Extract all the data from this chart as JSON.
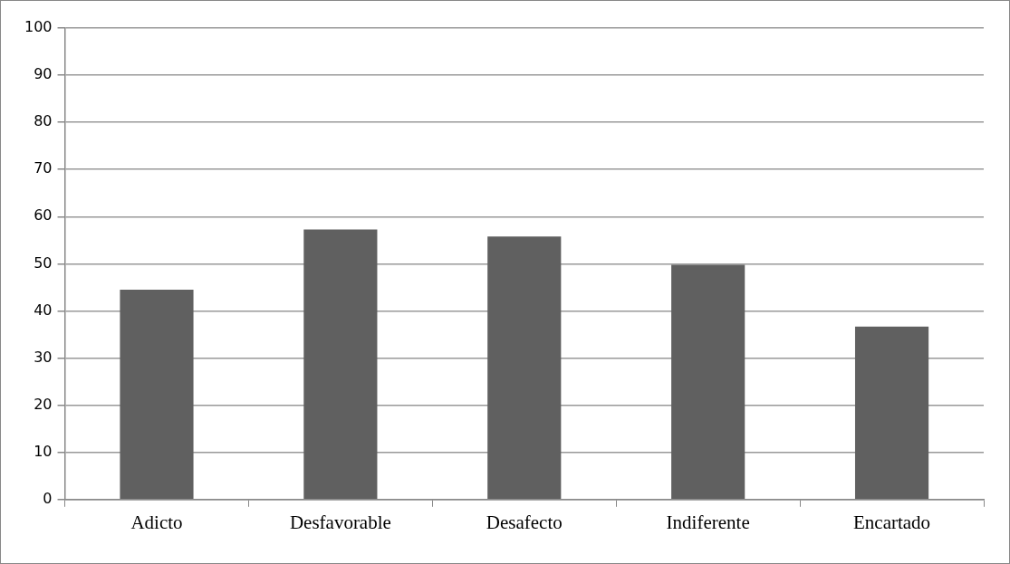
{
  "chart_data": {
    "type": "bar",
    "categories": [
      "Adicto",
      "Desfavorable",
      "Desafecto",
      "Indiferente",
      "Encartado"
    ],
    "values": [
      44.5,
      57.3,
      55.8,
      49.8,
      36.7
    ],
    "color": "#606060",
    "ylim": [
      0,
      100
    ],
    "yticks": [
      0,
      10,
      20,
      30,
      40,
      50,
      60,
      70,
      80,
      90,
      100
    ],
    "grid": "y",
    "legend": false
  }
}
